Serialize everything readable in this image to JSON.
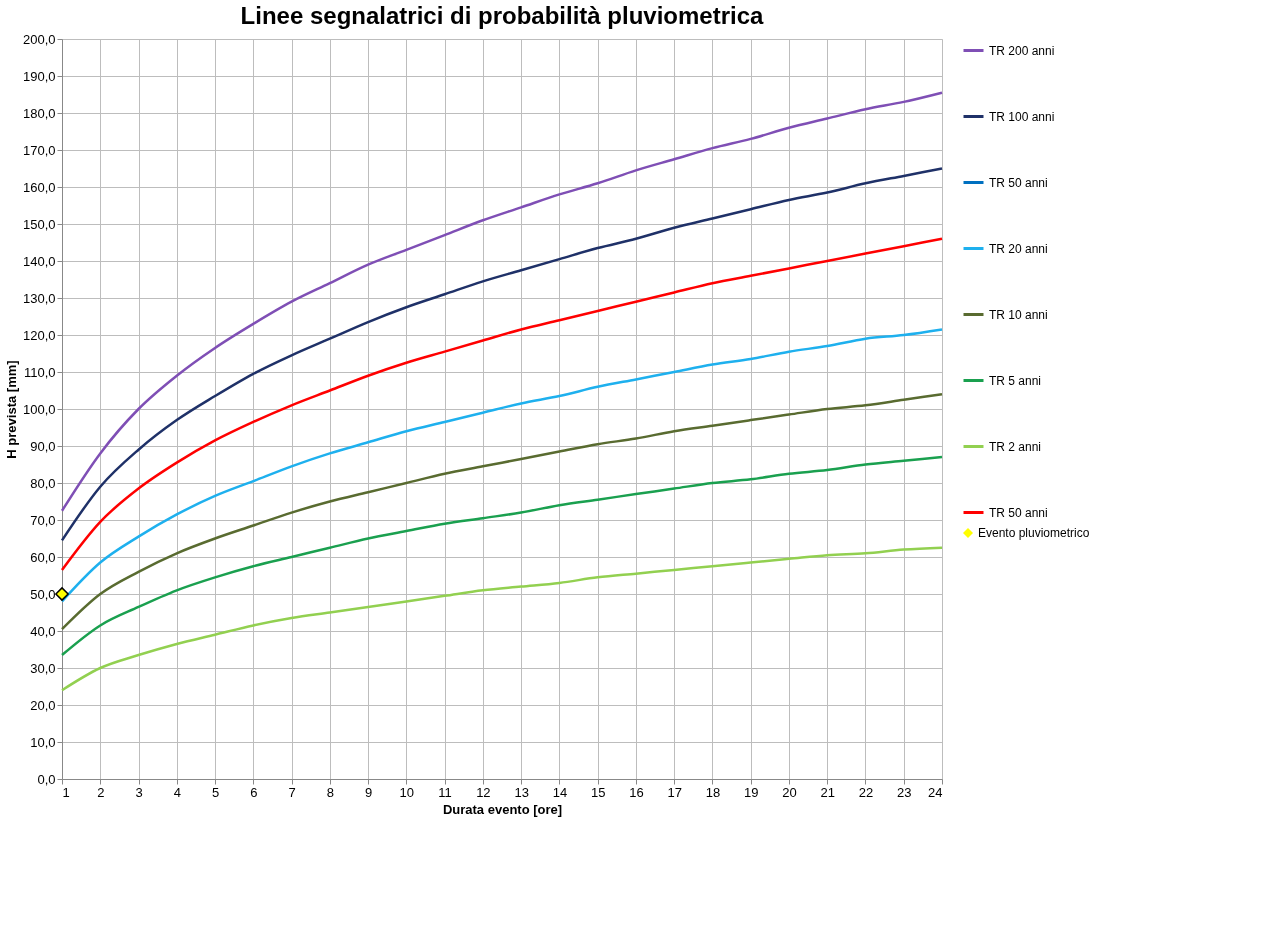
{
  "chart_data": {
    "type": "line",
    "title": "Linee segnalatrici di probabilità pluviometrica",
    "xlabel": "Durata evento [ore]",
    "ylabel": "H prevista [mm]",
    "x": [
      1,
      2,
      3,
      4,
      5,
      6,
      7,
      8,
      9,
      10,
      11,
      12,
      13,
      14,
      15,
      16,
      17,
      18,
      19,
      20,
      21,
      22,
      23,
      24
    ],
    "series": [
      {
        "name": "TR 200 anni",
        "color": "#7f4fb5",
        "values": [
          72.5,
          88,
          100,
          109,
          116.5,
          123,
          129,
          134,
          139,
          143,
          147,
          151,
          154.5,
          158,
          161,
          164.5,
          167.5,
          170.5,
          173,
          176,
          178.5,
          181,
          183,
          185.5
        ]
      },
      {
        "name": "TR 100 anni",
        "color": "#1f3168",
        "values": [
          64.5,
          79,
          89,
          97,
          103.5,
          109.5,
          114.5,
          119,
          123.5,
          127.5,
          131,
          134.5,
          137.5,
          140.5,
          143.5,
          146,
          149,
          151.5,
          154,
          156.5,
          158.5,
          161,
          163,
          165
        ]
      },
      {
        "name": "TR 50 anni",
        "color": "#0070c0",
        "values": [
          null,
          null,
          null,
          null,
          null,
          null,
          null,
          null,
          null,
          null,
          null,
          null,
          null,
          null,
          null,
          null,
          null,
          null,
          null,
          null,
          null,
          null,
          null,
          null
        ]
      },
      {
        "name": "TR 20 anni",
        "color": "#1eb0ee",
        "values": [
          48,
          58.5,
          65.5,
          71.5,
          76.5,
          80.5,
          84.5,
          88,
          91,
          94,
          96.5,
          99,
          101.5,
          103.5,
          106,
          108,
          110,
          112,
          113.5,
          115.5,
          117,
          119,
          120,
          121.5
        ]
      },
      {
        "name": "TR 10 anni",
        "color": "#596b30",
        "values": [
          40.5,
          50,
          56,
          61,
          65,
          68.5,
          72,
          75,
          77.5,
          80,
          82.5,
          84.5,
          86.5,
          88.5,
          90.5,
          92,
          94,
          95.5,
          97,
          98.5,
          100,
          101,
          102.5,
          104
        ]
      },
      {
        "name": "TR 5 anni",
        "color": "#1aa04f",
        "values": [
          33.5,
          41.5,
          46.5,
          51,
          54.5,
          57.5,
          60,
          62.5,
          65,
          67,
          69,
          70.5,
          72,
          74,
          75.5,
          77,
          78.5,
          80,
          81,
          82.5,
          83.5,
          85,
          86,
          87
        ]
      },
      {
        "name": "TR 2 anni",
        "color": "#92d050",
        "values": [
          24,
          30,
          33.5,
          36.5,
          39,
          41.5,
          43.5,
          45,
          46.5,
          48,
          49.5,
          51,
          52,
          53,
          54.5,
          55.5,
          56.5,
          57.5,
          58.5,
          59.5,
          60.5,
          61,
          62,
          62.5
        ]
      },
      {
        "name": "TR 50 anni",
        "color": "#ff0000",
        "values": [
          56.5,
          69.5,
          78.5,
          85.5,
          91.5,
          96.5,
          101,
          105,
          109,
          112.5,
          115.5,
          118.5,
          121.5,
          124,
          126.5,
          129,
          131.5,
          134,
          136,
          138,
          140,
          142,
          144,
          146
        ]
      },
      {
        "name": "Evento pluviometrico",
        "type": "scatter",
        "marker": "diamond",
        "color": "#ffff00",
        "x": [
          1
        ],
        "values": [
          50
        ]
      }
    ],
    "xlim": [
      1,
      24
    ],
    "xticks": [
      1,
      2,
      3,
      4,
      5,
      6,
      7,
      8,
      9,
      10,
      11,
      12,
      13,
      14,
      15,
      16,
      17,
      18,
      19,
      20,
      21,
      22,
      23,
      24
    ],
    "ylim": [
      0,
      200
    ],
    "yticks": [
      {
        "value": 0,
        "label": "0,0"
      },
      {
        "value": 10,
        "label": "10,0"
      },
      {
        "value": 20,
        "label": "20,0"
      },
      {
        "value": 30,
        "label": "30,0"
      },
      {
        "value": 40,
        "label": "40,0"
      },
      {
        "value": 50,
        "label": "50,0"
      },
      {
        "value": 60,
        "label": "60,0"
      },
      {
        "value": 70,
        "label": "70,0"
      },
      {
        "value": 80,
        "label": "80,0"
      },
      {
        "value": 90,
        "label": "90,0"
      },
      {
        "value": 100,
        "label": "100,0"
      },
      {
        "value": 110,
        "label": "110,0"
      },
      {
        "value": 120,
        "label": "120,0"
      },
      {
        "value": 130,
        "label": "130,0"
      },
      {
        "value": 140,
        "label": "140,0"
      },
      {
        "value": 150,
        "label": "150,0"
      },
      {
        "value": 160,
        "label": "160,0"
      },
      {
        "value": 170,
        "label": "170,0"
      },
      {
        "value": 180,
        "label": "180,0"
      },
      {
        "value": 190,
        "label": "190,0"
      },
      {
        "value": 200,
        "label": "200,0"
      }
    ],
    "grid": true,
    "legend": "right",
    "marker": "none",
    "line_style": "solid"
  }
}
